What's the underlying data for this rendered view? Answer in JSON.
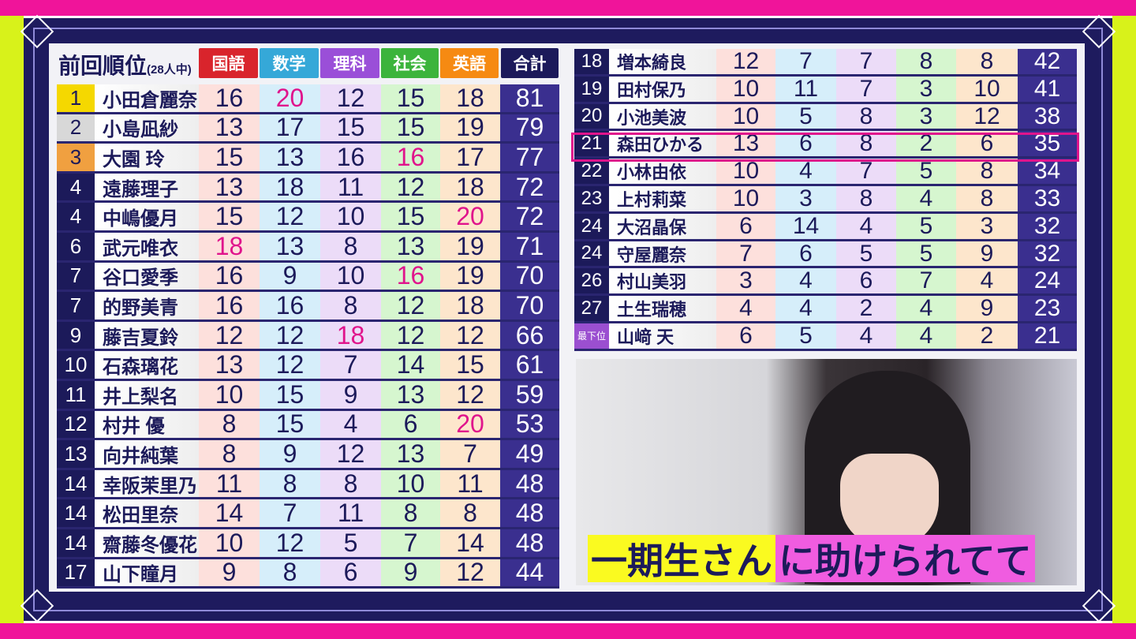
{
  "colors": {
    "accent": "#e0148c",
    "navy": "#1c1a5a",
    "total_bg": "#3a2f8f"
  },
  "title": {
    "main": "前回順位",
    "sub": "(28人中)"
  },
  "headers": [
    {
      "label": "国語",
      "color": "#d9242c",
      "cell": "#fde0dc"
    },
    {
      "label": "数学",
      "color": "#35a8d8",
      "cell": "#d6eefa"
    },
    {
      "label": "理科",
      "color": "#9a4fd8",
      "cell": "#ecdcf8"
    },
    {
      "label": "社会",
      "color": "#3cb43c",
      "cell": "#d6f6cf"
    },
    {
      "label": "英語",
      "color": "#f68a12",
      "cell": "#fde6cc"
    },
    {
      "label": "合計",
      "color": "#1c1a5a"
    }
  ],
  "left_rows": [
    {
      "rank": "1",
      "rank_color": "#f5d800",
      "name": "小田倉麗奈",
      "scores": [
        16,
        20,
        12,
        15,
        18
      ],
      "total": 81,
      "highlight": [
        1
      ]
    },
    {
      "rank": "2",
      "rank_color": "#d8d8d8",
      "name": "小島凪紗",
      "scores": [
        13,
        17,
        15,
        15,
        19
      ],
      "total": 79,
      "highlight": []
    },
    {
      "rank": "3",
      "rank_color": "#f0a040",
      "name": "大園 玲",
      "scores": [
        15,
        13,
        16,
        16,
        17
      ],
      "total": 77,
      "highlight": [
        3
      ]
    },
    {
      "rank": "4",
      "name": "遠藤理子",
      "scores": [
        13,
        18,
        11,
        12,
        18
      ],
      "total": 72,
      "highlight": []
    },
    {
      "rank": "4",
      "name": "中嶋優月",
      "scores": [
        15,
        12,
        10,
        15,
        20
      ],
      "total": 72,
      "highlight": [
        4
      ]
    },
    {
      "rank": "6",
      "name": "武元唯衣",
      "scores": [
        18,
        13,
        8,
        13,
        19
      ],
      "total": 71,
      "highlight": [
        0
      ]
    },
    {
      "rank": "7",
      "name": "谷口愛季",
      "scores": [
        16,
        9,
        10,
        16,
        19
      ],
      "total": 70,
      "highlight": [
        3
      ]
    },
    {
      "rank": "7",
      "name": "的野美青",
      "scores": [
        16,
        16,
        8,
        12,
        18
      ],
      "total": 70,
      "highlight": []
    },
    {
      "rank": "9",
      "name": "藤吉夏鈴",
      "scores": [
        12,
        12,
        18,
        12,
        12
      ],
      "total": 66,
      "highlight": [
        2
      ]
    },
    {
      "rank": "10",
      "name": "石森璃花",
      "scores": [
        13,
        12,
        7,
        14,
        15
      ],
      "total": 61,
      "highlight": []
    },
    {
      "rank": "11",
      "name": "井上梨名",
      "scores": [
        10,
        15,
        9,
        13,
        12
      ],
      "total": 59,
      "highlight": []
    },
    {
      "rank": "12",
      "name": "村井 優",
      "scores": [
        8,
        15,
        4,
        6,
        20
      ],
      "total": 53,
      "highlight": [
        4
      ]
    },
    {
      "rank": "13",
      "name": "向井純葉",
      "scores": [
        8,
        9,
        12,
        13,
        7
      ],
      "total": 49,
      "highlight": []
    },
    {
      "rank": "14",
      "name": "幸阪茉里乃",
      "scores": [
        11,
        8,
        8,
        10,
        11
      ],
      "total": 48,
      "highlight": []
    },
    {
      "rank": "14",
      "name": "松田里奈",
      "scores": [
        14,
        7,
        11,
        8,
        8
      ],
      "total": 48,
      "highlight": []
    },
    {
      "rank": "14",
      "name": "齋藤冬優花",
      "scores": [
        10,
        12,
        5,
        7,
        14
      ],
      "total": 48,
      "highlight": []
    },
    {
      "rank": "17",
      "name": "山下瞳月",
      "scores": [
        9,
        8,
        6,
        9,
        12
      ],
      "total": 44,
      "highlight": []
    }
  ],
  "right_rows": [
    {
      "rank": "18",
      "name": "増本綺良",
      "scores": [
        12,
        7,
        7,
        8,
        8
      ],
      "total": 42
    },
    {
      "rank": "19",
      "name": "田村保乃",
      "scores": [
        10,
        11,
        7,
        3,
        10
      ],
      "total": 41
    },
    {
      "rank": "20",
      "name": "小池美波",
      "scores": [
        10,
        5,
        8,
        3,
        12
      ],
      "total": 38
    },
    {
      "rank": "21",
      "name": "森田ひかる",
      "scores": [
        13,
        6,
        8,
        2,
        6
      ],
      "total": 35,
      "selected": true
    },
    {
      "rank": "22",
      "name": "小林由依",
      "scores": [
        10,
        4,
        7,
        5,
        8
      ],
      "total": 34
    },
    {
      "rank": "23",
      "name": "上村莉菜",
      "scores": [
        10,
        3,
        8,
        4,
        8
      ],
      "total": 33
    },
    {
      "rank": "24",
      "name": "大沼晶保",
      "scores": [
        6,
        14,
        4,
        5,
        3
      ],
      "total": 32
    },
    {
      "rank": "24",
      "name": "守屋麗奈",
      "scores": [
        7,
        6,
        5,
        5,
        9
      ],
      "total": 32
    },
    {
      "rank": "26",
      "name": "村山美羽",
      "scores": [
        3,
        4,
        6,
        7,
        4
      ],
      "total": 24
    },
    {
      "rank": "27",
      "name": "土生瑞穂",
      "scores": [
        4,
        4,
        2,
        4,
        9
      ],
      "total": 23
    },
    {
      "rank": "最下位",
      "rank_color": "#9b4fd0",
      "name": "山﨑 天",
      "scores": [
        6,
        5,
        4,
        4,
        2
      ],
      "total": 21
    }
  ],
  "caption": {
    "part1": "一期生さん",
    "part2": "に助けられてて"
  }
}
